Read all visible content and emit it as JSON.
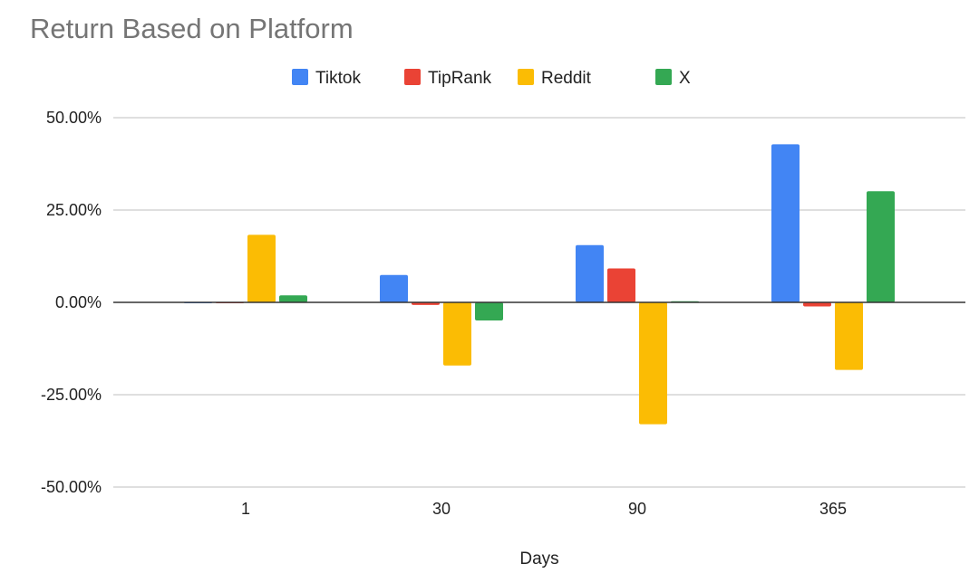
{
  "chart_data": {
    "type": "bar",
    "title": "Return Based on Platform",
    "xlabel": "Days",
    "ylabel": "",
    "categories": [
      "1",
      "30",
      "90",
      "365"
    ],
    "series": [
      {
        "name": "Tiktok",
        "color": "#4285f4",
        "values": [
          0,
          7.4,
          15.5,
          42.8
        ]
      },
      {
        "name": "TipRank",
        "color": "#ea4335",
        "values": [
          0,
          -0.7,
          9.2,
          -1.1
        ]
      },
      {
        "name": "Reddit",
        "color": "#fbbc04",
        "values": [
          18.3,
          -17.1,
          -33.0,
          -18.3
        ]
      },
      {
        "name": "X",
        "color": "#34a853",
        "values": [
          1.9,
          -4.9,
          0.3,
          30.1
        ]
      }
    ],
    "ylim": [
      -50,
      50
    ],
    "yticks": [
      50,
      25,
      0,
      -25,
      -50
    ],
    "ytick_labels": [
      "50.00%",
      "25.00%",
      "0.00%",
      "-25.00%",
      "-50.00%"
    ],
    "grid": true,
    "legend": "top"
  }
}
